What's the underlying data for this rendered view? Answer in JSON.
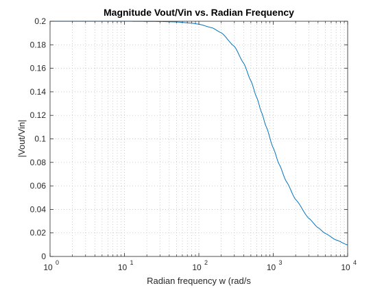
{
  "chart_data": {
    "type": "line",
    "title": "Magnitude Vout/Vin vs. Radian Frequency",
    "xlabel": "Radian frequency w (rad/s",
    "ylabel": "|Vout/Vin|",
    "x_scale": "log",
    "xlim": [
      1,
      10000
    ],
    "ylim": [
      0,
      0.2
    ],
    "grid": "on (major and minor, dotted)",
    "x_ticks": [
      {
        "base": "10",
        "exp": "0"
      },
      {
        "base": "10",
        "exp": "1"
      },
      {
        "base": "10",
        "exp": "2"
      },
      {
        "base": "10",
        "exp": "3"
      },
      {
        "base": "10",
        "exp": "4"
      }
    ],
    "y_ticks": [
      "0",
      "0.02",
      "0.04",
      "0.06",
      "0.08",
      "0.1",
      "0.12",
      "0.14",
      "0.16",
      "0.18",
      "0.2"
    ],
    "series": [
      {
        "color": "#0072bd",
        "x": [
          1,
          10,
          30,
          50,
          80,
          100,
          150,
          200,
          300,
          400,
          500,
          600,
          700,
          800,
          1000,
          1200,
          1500,
          2000,
          3000,
          4000,
          5000,
          7000,
          10000
        ],
        "y": [
          0.2,
          0.2,
          0.1998,
          0.1994,
          0.1984,
          0.1975,
          0.1945,
          0.1902,
          0.1786,
          0.1644,
          0.1494,
          0.1351,
          0.1221,
          0.1107,
          0.0922,
          0.0784,
          0.0637,
          0.0484,
          0.0325,
          0.0244,
          0.0196,
          0.014,
          0.0098
        ]
      }
    ]
  }
}
